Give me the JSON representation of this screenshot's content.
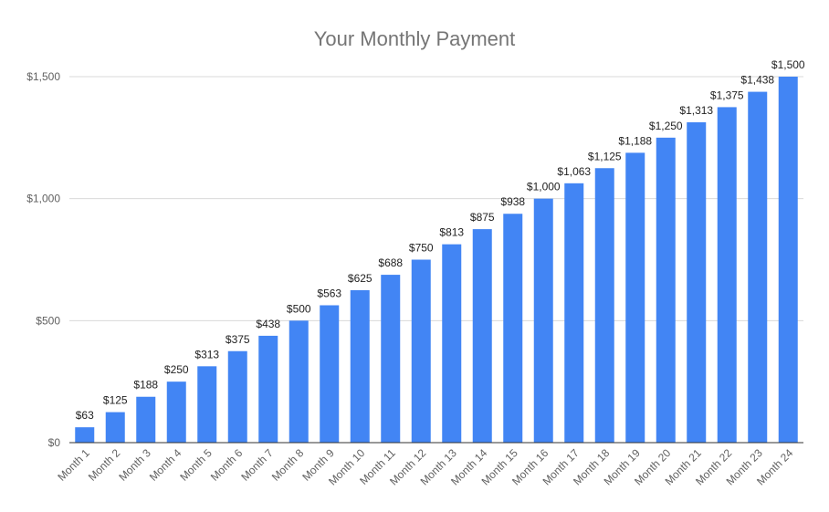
{
  "chart_data": {
    "type": "bar",
    "title": "Your Monthly Payment",
    "xlabel": "",
    "ylabel": "",
    "categories": [
      "Month 1",
      "Month 2",
      "Month 3",
      "Month 4",
      "Month 5",
      "Month 6",
      "Month 7",
      "Month 8",
      "Month 9",
      "Month 10",
      "Month 11",
      "Month 12",
      "Month 13",
      "Month 14",
      "Month 15",
      "Month 16",
      "Month 17",
      "Month 18",
      "Month 19",
      "Month 20",
      "Month 21",
      "Month 22",
      "Month 23",
      "Month 24"
    ],
    "values": [
      63,
      125,
      188,
      250,
      313,
      375,
      438,
      500,
      563,
      625,
      688,
      750,
      813,
      875,
      938,
      1000,
      1063,
      1125,
      1188,
      1250,
      1313,
      1375,
      1438,
      1500
    ],
    "data_labels": [
      "$63",
      "$125",
      "$188",
      "$250",
      "$313",
      "$375",
      "$438",
      "$500",
      "$563",
      "$625",
      "$688",
      "$750",
      "$813",
      "$875",
      "$938",
      "$1,000",
      "$1,063",
      "$1,125",
      "$1,188",
      "$1,250",
      "$1,313",
      "$1,375",
      "$1,438",
      "$1,500"
    ],
    "ylim": [
      0,
      1500
    ],
    "yticks": [
      0,
      500,
      1000,
      1500
    ],
    "ytick_labels": [
      "$0",
      "$500",
      "$1,000",
      "$1,500"
    ],
    "grid": true,
    "bar_color": "#4285f4"
  }
}
